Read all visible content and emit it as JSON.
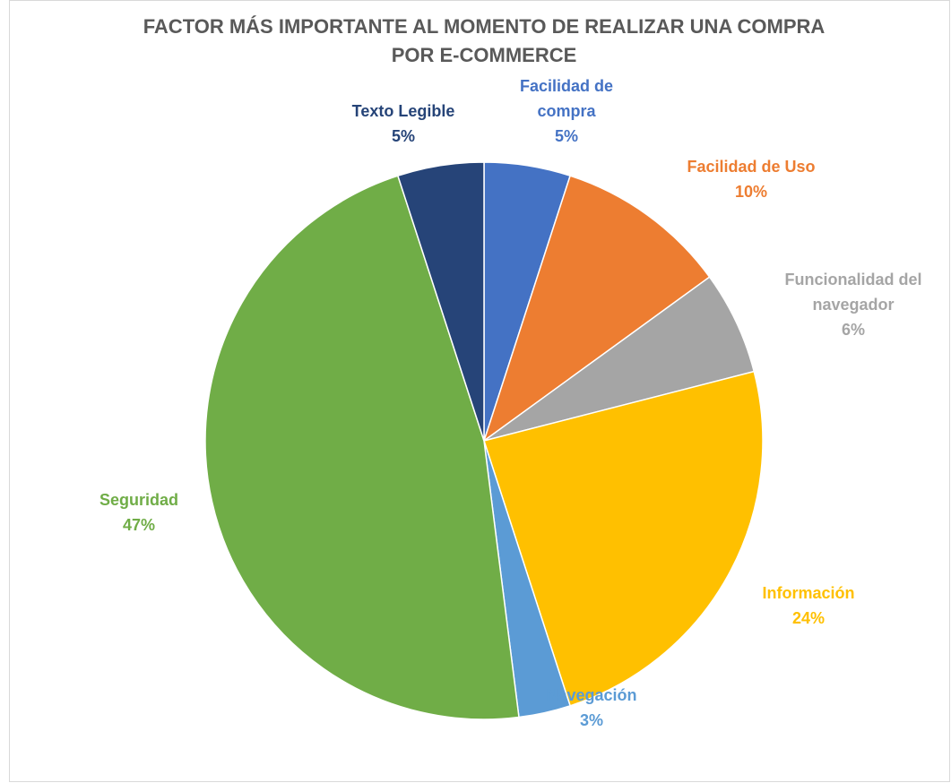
{
  "chart_data": {
    "type": "pie",
    "title": "FACTOR MÁS IMPORTANTE AL MOMENTO DE REALIZAR UNA COMPRA POR E-COMMERCE",
    "categories": [
      "Facilidad de compra",
      "Facilidad de Uso",
      "Funcionalidad del navegador",
      "Información",
      "Navegación",
      "Seguridad",
      "Texto Legible"
    ],
    "values": [
      5,
      10,
      6,
      24,
      3,
      47,
      5
    ],
    "value_labels": [
      "5%",
      "10%",
      "6%",
      "24%",
      "3%",
      "47%",
      "5%"
    ],
    "colors": [
      "#4472c4",
      "#ed7d31",
      "#a5a5a5",
      "#ffc000",
      "#5b9bd5",
      "#70ad47",
      "#264478"
    ]
  }
}
